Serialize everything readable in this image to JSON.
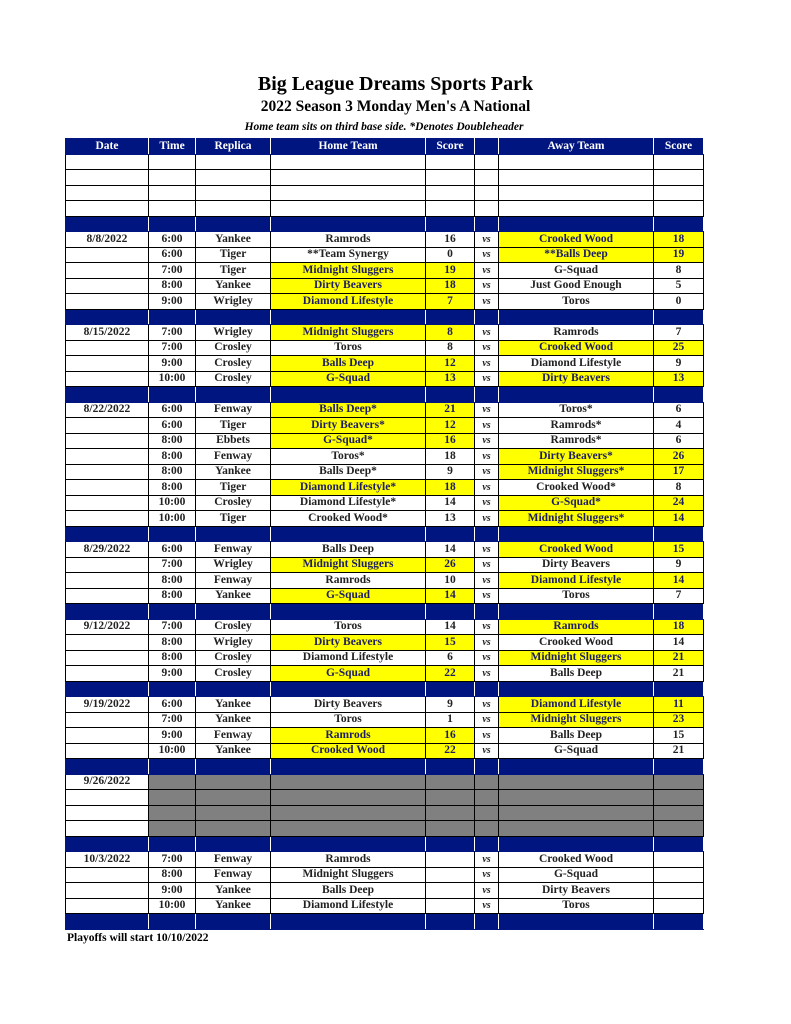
{
  "title": "Big League Dreams Sports Park",
  "subtitle": "2022 Season 3 Monday Men's A National",
  "note": "Home team sits on third base side.  *Denotes Doubleheader",
  "columns": [
    "Date",
    "Time",
    "Replica",
    "Home Team",
    "Score",
    "",
    "Away Team",
    "Score"
  ],
  "vs_label": "vs",
  "colors": {
    "header": "#00157f",
    "winner": "#ffff00",
    "unplayed": "#808080"
  },
  "weeks": [
    {
      "date": "",
      "blank": true,
      "games": [
        {},
        {},
        {},
        {}
      ]
    },
    {
      "date": "8/8/2022",
      "games": [
        {
          "time": "6:00",
          "replica": "Yankee",
          "home": "Ramrods",
          "home_score": "16",
          "away": "Crooked Wood",
          "away_score": "18",
          "winner": "away"
        },
        {
          "time": "6:00",
          "replica": "Tiger",
          "home": "**Team Synergy",
          "home_score": "0",
          "away": "**Balls Deep",
          "away_score": "19",
          "winner": "away"
        },
        {
          "time": "7:00",
          "replica": "Tiger",
          "home": "Midnight Sluggers",
          "home_score": "19",
          "away": "G-Squad",
          "away_score": "8",
          "winner": "home"
        },
        {
          "time": "8:00",
          "replica": "Yankee",
          "home": "Dirty Beavers",
          "home_score": "18",
          "away": "Just Good Enough",
          "away_score": "5",
          "winner": "home"
        },
        {
          "time": "9:00",
          "replica": "Wrigley",
          "home": "Diamond Lifestyle",
          "home_score": "7",
          "away": "Toros",
          "away_score": "0",
          "winner": "home"
        }
      ]
    },
    {
      "date": "8/15/2022",
      "games": [
        {
          "time": "7:00",
          "replica": "Wrigley",
          "home": "Midnight Sluggers",
          "home_score": "8",
          "away": "Ramrods",
          "away_score": "7",
          "winner": "home"
        },
        {
          "time": "7:00",
          "replica": "Crosley",
          "home": "Toros",
          "home_score": "8",
          "away": "Crooked Wood",
          "away_score": "25",
          "winner": "away"
        },
        {
          "time": "9:00",
          "replica": "Crosley",
          "home": "Balls Deep",
          "home_score": "12",
          "away": "Diamond Lifestyle",
          "away_score": "9",
          "winner": "home"
        },
        {
          "time": "10:00",
          "replica": "Crosley",
          "home": "G-Squad",
          "home_score": "13",
          "away": "Dirty Beavers",
          "away_score": "13",
          "winner": "both"
        }
      ]
    },
    {
      "date": "8/22/2022",
      "games": [
        {
          "time": "6:00",
          "replica": "Fenway",
          "home": "Balls Deep*",
          "home_score": "21",
          "away": "Toros*",
          "away_score": "6",
          "winner": "home"
        },
        {
          "time": "6:00",
          "replica": "Tiger",
          "home": "Dirty Beavers*",
          "home_score": "12",
          "away": "Ramrods*",
          "away_score": "4",
          "winner": "home"
        },
        {
          "time": "8:00",
          "replica": "Ebbets",
          "home": "G-Squad*",
          "home_score": "16",
          "away": "Ramrods*",
          "away_score": "6",
          "winner": "home"
        },
        {
          "time": "8:00",
          "replica": "Fenway",
          "home": "Toros*",
          "home_score": "18",
          "away": "Dirty Beavers*",
          "away_score": "26",
          "winner": "away"
        },
        {
          "time": "8:00",
          "replica": "Yankee",
          "home": "Balls Deep*",
          "home_score": "9",
          "away": "Midnight Sluggers*",
          "away_score": "17",
          "winner": "away"
        },
        {
          "time": "8:00",
          "replica": "Tiger",
          "home": "Diamond Lifestyle*",
          "home_score": "18",
          "away": "Crooked Wood*",
          "away_score": "8",
          "winner": "home"
        },
        {
          "time": "10:00",
          "replica": "Crosley",
          "home": "Diamond Lifestyle*",
          "home_score": "14",
          "away": "G-Squad*",
          "away_score": "24",
          "winner": "away"
        },
        {
          "time": "10:00",
          "replica": "Tiger",
          "home": "Crooked Wood*",
          "home_score": "13",
          "away": "Midnight Sluggers*",
          "away_score": "14",
          "winner": "away"
        }
      ]
    },
    {
      "date": "8/29/2022",
      "games": [
        {
          "time": "6:00",
          "replica": "Fenway",
          "home": "Balls Deep",
          "home_score": "14",
          "away": "Crooked Wood",
          "away_score": "15",
          "winner": "away"
        },
        {
          "time": "7:00",
          "replica": "Wrigley",
          "home": "Midnight Sluggers",
          "home_score": "26",
          "away": "Dirty Beavers",
          "away_score": "9",
          "winner": "home"
        },
        {
          "time": "8:00",
          "replica": "Fenway",
          "home": "Ramrods",
          "home_score": "10",
          "away": "Diamond Lifestyle",
          "away_score": "14",
          "winner": "away"
        },
        {
          "time": "8:00",
          "replica": "Yankee",
          "home": "G-Squad",
          "home_score": "14",
          "away": "Toros",
          "away_score": "7",
          "winner": "home"
        }
      ]
    },
    {
      "date": "9/12/2022",
      "games": [
        {
          "time": "7:00",
          "replica": "Crosley",
          "home": "Toros",
          "home_score": "14",
          "away": "Ramrods",
          "away_score": "18",
          "winner": "away"
        },
        {
          "time": "8:00",
          "replica": "Wrigley",
          "home": "Dirty Beavers",
          "home_score": "15",
          "away": "Crooked Wood",
          "away_score": "14",
          "winner": "home"
        },
        {
          "time": "8:00",
          "replica": "Crosley",
          "home": "Diamond Lifestyle",
          "home_score": "6",
          "away": "Midnight Sluggers",
          "away_score": "21",
          "winner": "away"
        },
        {
          "time": "9:00",
          "replica": "Crosley",
          "home": "G-Squad",
          "home_score": "22",
          "away": "Balls Deep",
          "away_score": "21",
          "winner": "home"
        }
      ]
    },
    {
      "date": "9/19/2022",
      "games": [
        {
          "time": "6:00",
          "replica": "Yankee",
          "home": "Dirty Beavers",
          "home_score": "9",
          "away": "Diamond Lifestyle",
          "away_score": "11",
          "winner": "away"
        },
        {
          "time": "7:00",
          "replica": "Yankee",
          "home": "Toros",
          "home_score": "1",
          "away": "Midnight Sluggers",
          "away_score": "23",
          "winner": "away"
        },
        {
          "time": "9:00",
          "replica": "Fenway",
          "home": "Ramrods",
          "home_score": "16",
          "away": "Balls Deep",
          "away_score": "15",
          "winner": "home"
        },
        {
          "time": "10:00",
          "replica": "Yankee",
          "home": "Crooked Wood",
          "home_score": "22",
          "away": "G-Squad",
          "away_score": "21",
          "winner": "home"
        }
      ]
    },
    {
      "date": "9/26/2022",
      "gray": true,
      "games": [
        {},
        {},
        {},
        {}
      ]
    },
    {
      "date": "10/3/2022",
      "games": [
        {
          "time": "7:00",
          "replica": "Fenway",
          "home": "Ramrods",
          "home_score": "",
          "away": "Crooked Wood",
          "away_score": ""
        },
        {
          "time": "8:00",
          "replica": "Fenway",
          "home": "Midnight Sluggers",
          "home_score": "",
          "away": "G-Squad",
          "away_score": ""
        },
        {
          "time": "9:00",
          "replica": "Yankee",
          "home": "Balls Deep",
          "home_score": "",
          "away": "Dirty Beavers",
          "away_score": ""
        },
        {
          "time": "10:00",
          "replica": "Yankee",
          "home": "Diamond Lifestyle",
          "home_score": "",
          "away": "Toros",
          "away_score": ""
        }
      ]
    }
  ],
  "footer": "Playoffs will start 10/10/2022"
}
